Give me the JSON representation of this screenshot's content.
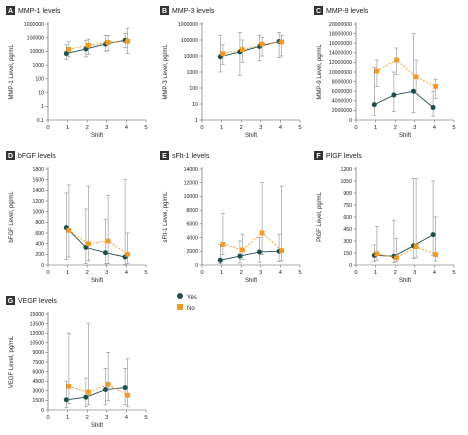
{
  "colors": {
    "yes": "#1f4e4e",
    "no": "#f29a25",
    "axis": "#555555",
    "error": "#8c8c8c",
    "badge": "#333333"
  },
  "legend": {
    "items": [
      {
        "key": "yes",
        "label": "Yes"
      },
      {
        "key": "no",
        "label": "No"
      }
    ]
  },
  "chart_data": [
    {
      "letter": "A",
      "title": "MMP-1 levels",
      "ylabel": "MMP-1 Level, pg/mL",
      "xlabel": "Shift",
      "type": "line",
      "yscale": "log",
      "ylim": [
        0.1,
        1000000
      ],
      "yticks": [
        0.1,
        1,
        10,
        100,
        1000,
        10000,
        100000,
        1000000
      ],
      "ytick_labels": [
        "0.1",
        "1",
        "10",
        "100",
        "1000",
        "10000",
        "100000",
        "1000000"
      ],
      "xlim": [
        0,
        5
      ],
      "xticks": [
        0,
        1,
        2,
        3,
        4,
        5
      ],
      "x": [
        1,
        2,
        3,
        4
      ],
      "series": [
        {
          "key": "yes",
          "name": "Yes",
          "values": [
            7000,
            15000,
            35000,
            65000
          ],
          "err_low": [
            2500,
            4000,
            10000,
            20000
          ],
          "err_high": [
            30000,
            60000,
            150000,
            200000
          ]
        },
        {
          "key": "no",
          "name": "No",
          "values": [
            14000,
            28000,
            45000,
            55000
          ],
          "err_low": [
            4000,
            6000,
            12000,
            7000
          ],
          "err_high": [
            50000,
            80000,
            150000,
            500000
          ]
        }
      ]
    },
    {
      "letter": "B",
      "title": "MMP-3 levels",
      "ylabel": "MMP-3 Level, pg/mL",
      "xlabel": "Shift",
      "type": "line",
      "yscale": "log",
      "ylim": [
        1,
        1000000
      ],
      "yticks": [
        1,
        10,
        100,
        1000,
        10000,
        100000,
        1000000
      ],
      "ytick_labels": [
        "1",
        "10",
        "100",
        "1000",
        "10000",
        "100000",
        "1000000"
      ],
      "xlim": [
        0,
        5
      ],
      "xticks": [
        0,
        1,
        2,
        3,
        4,
        5
      ],
      "x": [
        1,
        2,
        3,
        4
      ],
      "series": [
        {
          "key": "yes",
          "name": "Yes",
          "values": [
            9000,
            18000,
            40000,
            80000
          ],
          "err_low": [
            1000,
            600,
            5000,
            8000
          ],
          "err_high": [
            200000,
            300000,
            200000,
            300000
          ]
        },
        {
          "key": "no",
          "name": "No",
          "values": [
            14000,
            25000,
            55000,
            75000
          ],
          "err_low": [
            3000,
            4000,
            10000,
            10000
          ],
          "err_high": [
            50000,
            100000,
            150000,
            200000
          ]
        }
      ]
    },
    {
      "letter": "C",
      "title": "MMP-9 levels",
      "ylabel": "MMP-9 Level, pg/mL",
      "xlabel": "Shift",
      "type": "line",
      "yscale": "linear",
      "ylim": [
        0,
        20000000
      ],
      "yticks": [
        0,
        2000000,
        4000000,
        6000000,
        8000000,
        10000000,
        12000000,
        14000000,
        16000000,
        18000000,
        20000000
      ],
      "ytick_labels": [
        "0",
        "2000000",
        "4000000",
        "6000000",
        "8000000",
        "10000000",
        "12000000",
        "14000000",
        "16000000",
        "18000000",
        "20000000"
      ],
      "xlim": [
        0,
        5
      ],
      "xticks": [
        0,
        1,
        2,
        3,
        4,
        5
      ],
      "x": [
        1,
        2,
        3,
        4
      ],
      "series": [
        {
          "key": "yes",
          "name": "Yes",
          "values": [
            3200000,
            5200000,
            6000000,
            2600000
          ],
          "err_low": [
            1000000,
            1800000,
            1500000,
            800000
          ],
          "err_high": [
            11000000,
            10000000,
            18000000,
            6000000
          ]
        },
        {
          "key": "no",
          "name": "No",
          "values": [
            10200000,
            12500000,
            9000000,
            7000000
          ],
          "err_low": [
            7000000,
            9500000,
            5500000,
            4500000
          ],
          "err_high": [
            12500000,
            15000000,
            12500000,
            8500000
          ]
        }
      ]
    },
    {
      "letter": "D",
      "title": "bFGF levels",
      "ylabel": "bFGF Level, pg/mL",
      "xlabel": "Shift",
      "type": "line",
      "yscale": "linear",
      "ylim": [
        0,
        1800
      ],
      "yticks": [
        0,
        200,
        400,
        600,
        800,
        1000,
        1200,
        1400,
        1600,
        1800
      ],
      "ytick_labels": [
        "0",
        "200",
        "400",
        "600",
        "800",
        "1000",
        "1200",
        "1400",
        "1600",
        "1800"
      ],
      "xlim": [
        0,
        5
      ],
      "xticks": [
        0,
        1,
        2,
        3,
        4,
        5
      ],
      "x": [
        1,
        2,
        3,
        4
      ],
      "series": [
        {
          "key": "yes",
          "name": "Yes",
          "values": [
            700,
            330,
            230,
            150
          ],
          "err_low": [
            100,
            30,
            20,
            10
          ],
          "err_high": [
            1350,
            1050,
            850,
            1600
          ]
        },
        {
          "key": "no",
          "name": "No",
          "values": [
            650,
            400,
            450,
            200
          ],
          "err_low": [
            150,
            80,
            30,
            30
          ],
          "err_high": [
            1500,
            1480,
            1300,
            600
          ]
        }
      ]
    },
    {
      "letter": "E",
      "title": "sFlt-1 levels",
      "ylabel": "sFlt-1 Level, pg/mL",
      "xlabel": "Shift",
      "type": "line",
      "yscale": "linear",
      "ylim": [
        0,
        14000
      ],
      "yticks": [
        0,
        2000,
        4000,
        6000,
        8000,
        10000,
        12000,
        14000
      ],
      "ytick_labels": [
        "0",
        "2000",
        "4000",
        "6000",
        "8000",
        "10000",
        "12000",
        "14000"
      ],
      "xlim": [
        0,
        5
      ],
      "xticks": [
        0,
        1,
        2,
        3,
        4,
        5
      ],
      "x": [
        1,
        2,
        3,
        4
      ],
      "series": [
        {
          "key": "yes",
          "name": "Yes",
          "values": [
            700,
            1300,
            1900,
            2000
          ],
          "err_low": [
            200,
            300,
            400,
            500
          ],
          "err_high": [
            3000,
            3500,
            4000,
            4500
          ]
        },
        {
          "key": "no",
          "name": "No",
          "values": [
            3000,
            2200,
            4700,
            2100
          ],
          "err_low": [
            1500,
            800,
            1500,
            600
          ],
          "err_high": [
            7500,
            4500,
            12000,
            11500
          ]
        }
      ]
    },
    {
      "letter": "F",
      "title": "PlGF levels",
      "ylabel": "PlGF Level, pg/mL",
      "xlabel": "Shift",
      "type": "line",
      "yscale": "linear",
      "ylim": [
        0,
        1200
      ],
      "yticks": [
        0,
        150,
        300,
        450,
        600,
        750,
        900,
        1050,
        1200
      ],
      "ytick_labels": [
        "0",
        "150",
        "300",
        "450",
        "600",
        "750",
        "900",
        "1050",
        "1200"
      ],
      "xlim": [
        0,
        5
      ],
      "xticks": [
        0,
        1,
        2,
        3,
        4,
        5
      ],
      "x": [
        1,
        2,
        3,
        4
      ],
      "series": [
        {
          "key": "yes",
          "name": "Yes",
          "values": [
            120,
            110,
            240,
            380
          ],
          "err_low": [
            40,
            30,
            80,
            120
          ],
          "err_high": [
            250,
            560,
            1080,
            1050
          ]
        },
        {
          "key": "no",
          "name": "No",
          "values": [
            140,
            90,
            230,
            130
          ],
          "err_low": [
            60,
            40,
            90,
            50
          ],
          "err_high": [
            480,
            330,
            1080,
            600
          ]
        }
      ]
    },
    {
      "letter": "G",
      "title": "VEGF levels",
      "ylabel": "VEGF Level, pg/mL",
      "xlabel": "Shift",
      "type": "line",
      "yscale": "linear",
      "ylim": [
        0,
        15000
      ],
      "yticks": [
        0,
        1500,
        3000,
        4500,
        6000,
        7500,
        9000,
        10500,
        12000,
        13500,
        15000
      ],
      "ytick_labels": [
        "0",
        "1500",
        "3000",
        "4500",
        "6000",
        "7500",
        "9000",
        "10500",
        "12000",
        "13500",
        "15000"
      ],
      "xlim": [
        0,
        5
      ],
      "xticks": [
        0,
        1,
        2,
        3,
        4,
        5
      ],
      "x": [
        1,
        2,
        3,
        4
      ],
      "series": [
        {
          "key": "yes",
          "name": "Yes",
          "values": [
            1600,
            2000,
            3200,
            3500
          ],
          "err_low": [
            400,
            500,
            800,
            800
          ],
          "err_high": [
            4500,
            5000,
            6500,
            6500
          ]
        },
        {
          "key": "no",
          "name": "No",
          "values": [
            3700,
            2800,
            4000,
            2300
          ],
          "err_low": [
            1000,
            800,
            1500,
            500
          ],
          "err_high": [
            12000,
            13500,
            9000,
            8000
          ]
        }
      ]
    }
  ]
}
